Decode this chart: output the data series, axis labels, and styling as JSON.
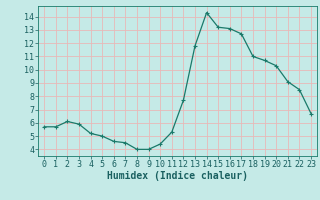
{
  "x": [
    0,
    1,
    2,
    3,
    4,
    5,
    6,
    7,
    8,
    9,
    10,
    11,
    12,
    13,
    14,
    15,
    16,
    17,
    18,
    19,
    20,
    21,
    22,
    23
  ],
  "y": [
    5.7,
    5.7,
    6.1,
    5.9,
    5.2,
    5.0,
    4.6,
    4.5,
    4.0,
    4.0,
    4.4,
    5.3,
    7.7,
    11.8,
    14.3,
    13.2,
    13.1,
    12.7,
    11.0,
    10.7,
    10.3,
    9.1,
    8.5,
    6.7
  ],
  "line_color": "#1a7a6a",
  "marker": "+",
  "marker_size": 3,
  "marker_linewidth": 0.8,
  "linewidth": 0.9,
  "bg_color": "#c5eae7",
  "grid_color": "#e8b8b8",
  "axis_color": "#1a7a6a",
  "text_color": "#1a6060",
  "xlabel": "Humidex (Indice chaleur)",
  "xlabel_fontsize": 7,
  "tick_fontsize": 6,
  "ylim": [
    3.5,
    14.8
  ],
  "xlim": [
    -0.5,
    23.5
  ],
  "yticks": [
    4,
    5,
    6,
    7,
    8,
    9,
    10,
    11,
    12,
    13,
    14
  ],
  "xticks": [
    0,
    1,
    2,
    3,
    4,
    5,
    6,
    7,
    8,
    9,
    10,
    11,
    12,
    13,
    14,
    15,
    16,
    17,
    18,
    19,
    20,
    21,
    22,
    23
  ]
}
